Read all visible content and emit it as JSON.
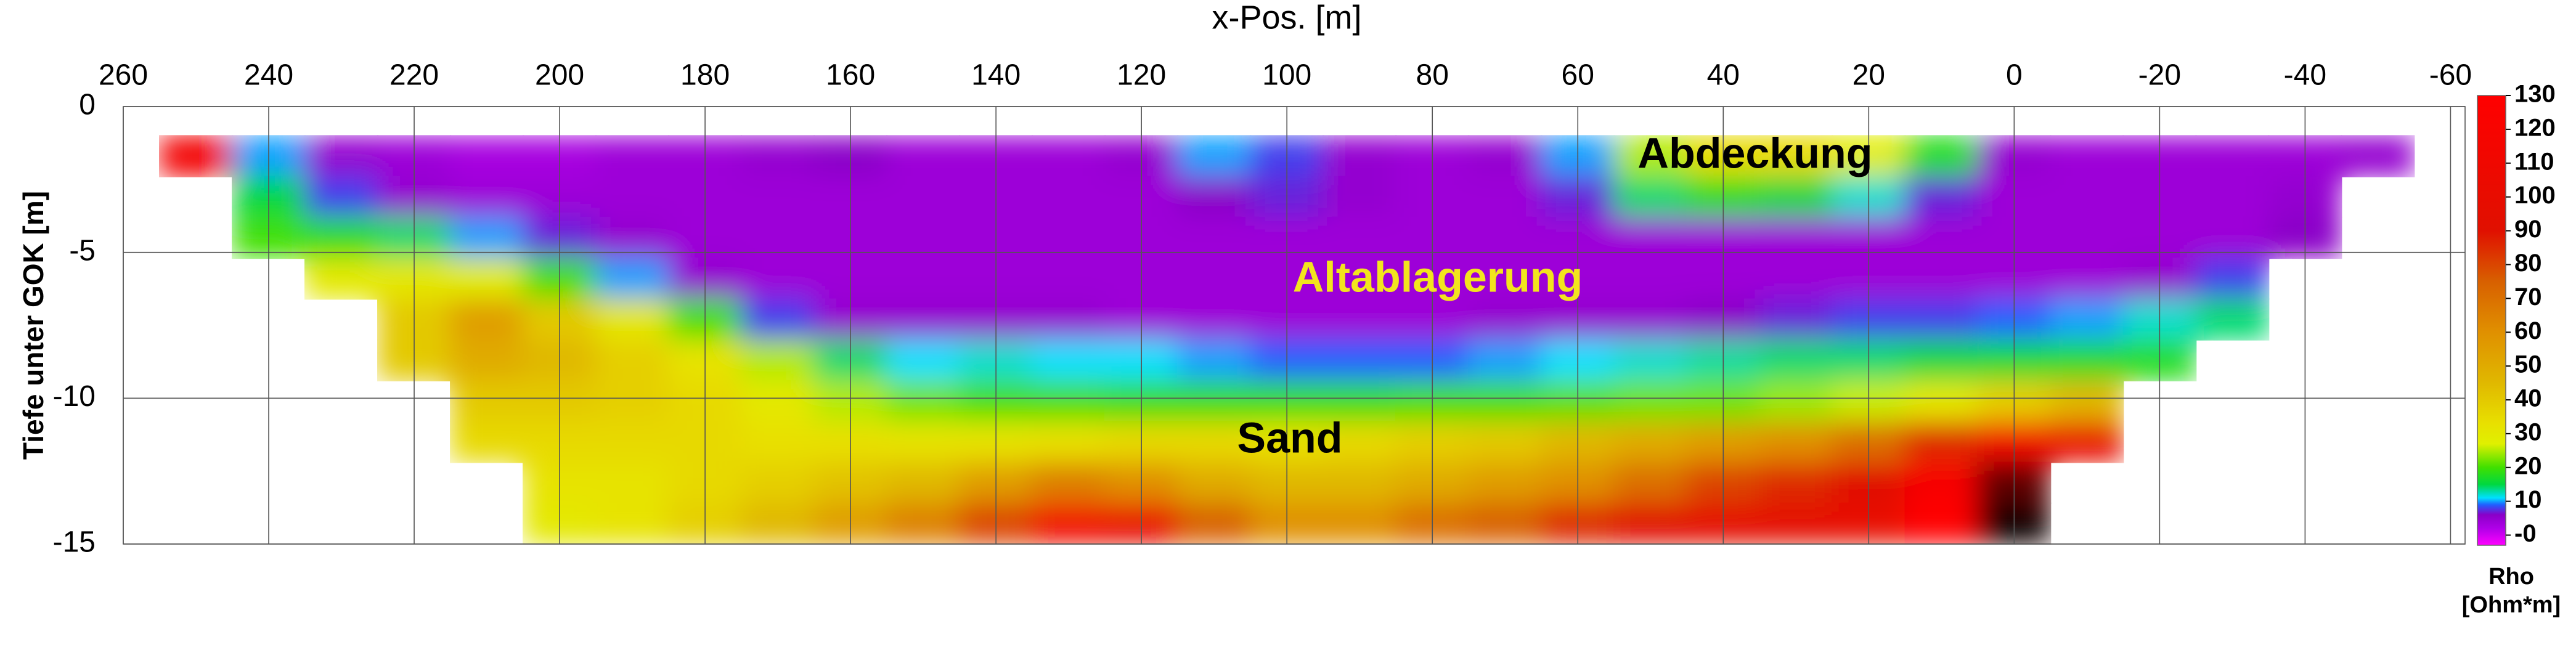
{
  "chart_data": {
    "type": "heatmap",
    "xlabel": "x-Pos. [m]",
    "ylabel": "Tiefe unter GOK [m]",
    "xlim": [
      260,
      -62
    ],
    "ylim": [
      -15,
      0
    ],
    "xticks": [
      260,
      240,
      220,
      200,
      180,
      160,
      140,
      120,
      100,
      80,
      60,
      40,
      20,
      0,
      -20,
      -40,
      -60
    ],
    "yticks": [
      0,
      -5,
      -10,
      -15
    ],
    "grid": true,
    "x": [
      250,
      240,
      230,
      220,
      210,
      200,
      190,
      180,
      170,
      160,
      150,
      140,
      130,
      120,
      110,
      100,
      90,
      80,
      70,
      60,
      50,
      40,
      30,
      20,
      10,
      0,
      -10,
      -20,
      -30,
      -40,
      -50
    ],
    "y": [
      -1.7,
      -3.1,
      -4.5,
      -5.9,
      -7.3,
      -8.7,
      -10.1,
      -11.5,
      -12.9,
      -14.3
    ],
    "values": [
      [
        115,
        10,
        5,
        4,
        3,
        3,
        4,
        4,
        5,
        6,
        4,
        4,
        4,
        5,
        10,
        8,
        5,
        4,
        5,
        10,
        25,
        35,
        35,
        28,
        18,
        5,
        4,
        4,
        4,
        4,
        5
      ],
      [
        null,
        15,
        8,
        5,
        4,
        4,
        4,
        4,
        4,
        4,
        4,
        4,
        4,
        4,
        6,
        7,
        5,
        4,
        4,
        7,
        14,
        18,
        15,
        12,
        7,
        4,
        4,
        4,
        4,
        5,
        null
      ],
      [
        null,
        20,
        18,
        14,
        10,
        7,
        5,
        4,
        4,
        4,
        4,
        4,
        4,
        4,
        4,
        4,
        4,
        4,
        4,
        4,
        4,
        4,
        4,
        4,
        4,
        4,
        4,
        4,
        4,
        6,
        null
      ],
      [
        null,
        null,
        30,
        30,
        28,
        20,
        10,
        5,
        4,
        4,
        4,
        4,
        4,
        4,
        4,
        4,
        4,
        4,
        4,
        4,
        4,
        4,
        4,
        4,
        4,
        4,
        4,
        5,
        8,
        null,
        null
      ],
      [
        null,
        null,
        null,
        40,
        55,
        40,
        30,
        20,
        8,
        5,
        5,
        5,
        5,
        4,
        4,
        4,
        4,
        4,
        5,
        5,
        5,
        6,
        7,
        8,
        8,
        9,
        10,
        12,
        14,
        null,
        null
      ],
      [
        null,
        null,
        null,
        40,
        50,
        45,
        38,
        32,
        25,
        14,
        11,
        12,
        11,
        11,
        10,
        9,
        9,
        9,
        10,
        11,
        12,
        13,
        14,
        14,
        15,
        16,
        17,
        18,
        null,
        null,
        null
      ],
      [
        null,
        null,
        null,
        null,
        40,
        40,
        38,
        35,
        30,
        25,
        22,
        20,
        20,
        19,
        19,
        19,
        19,
        20,
        20,
        21,
        22,
        22,
        24,
        26,
        30,
        38,
        45,
        null,
        null,
        null,
        null
      ],
      [
        null,
        null,
        null,
        null,
        35,
        35,
        35,
        35,
        33,
        33,
        32,
        32,
        33,
        35,
        35,
        33,
        35,
        38,
        40,
        45,
        50,
        55,
        60,
        70,
        85,
        110,
        100,
        null,
        null,
        null,
        null
      ],
      [
        null,
        null,
        null,
        null,
        null,
        32,
        32,
        35,
        38,
        42,
        45,
        55,
        65,
        60,
        50,
        45,
        45,
        50,
        55,
        60,
        70,
        80,
        85,
        90,
        120,
        160,
        null,
        null,
        null,
        null,
        null
      ],
      [
        null,
        null,
        null,
        null,
        null,
        30,
        32,
        38,
        45,
        55,
        65,
        80,
        110,
        100,
        75,
        60,
        60,
        70,
        75,
        85,
        90,
        95,
        95,
        100,
        130,
        180,
        null,
        null,
        null,
        null,
        null
      ]
    ],
    "colormap": [
      {
        "value": -3,
        "color": "#ff00ff"
      },
      {
        "value": 2,
        "color": "#b000e8"
      },
      {
        "value": 6,
        "color": "#8a00c8"
      },
      {
        "value": 9,
        "color": "#2060ff"
      },
      {
        "value": 11,
        "color": "#00e0ff"
      },
      {
        "value": 15,
        "color": "#00d840"
      },
      {
        "value": 20,
        "color": "#40e000"
      },
      {
        "value": 27,
        "color": "#e0f000"
      },
      {
        "value": 33,
        "color": "#e8e000"
      },
      {
        "value": 45,
        "color": "#e0b800"
      },
      {
        "value": 60,
        "color": "#e09000"
      },
      {
        "value": 75,
        "color": "#d86000"
      },
      {
        "value": 90,
        "color": "#e01000"
      },
      {
        "value": 130,
        "color": "#ff0000"
      },
      {
        "value": 160,
        "color": "#600000"
      },
      {
        "value": 180,
        "color": "#100000"
      }
    ],
    "colorbar": {
      "label": [
        "Rho",
        "[Ohm*m]"
      ],
      "zlim": [
        -3,
        130
      ],
      "ticks": [
        {
          "value": 0,
          "label": "-0"
        },
        10,
        20,
        30,
        40,
        50,
        60,
        70,
        80,
        90,
        100,
        110,
        120,
        130
      ]
    },
    "annotations": [
      {
        "text": "Abdeckung",
        "color": "#000000"
      },
      {
        "text": "Altablagerung",
        "color": "#f2e41e"
      },
      {
        "text": "Sand",
        "color": "#000000"
      }
    ]
  }
}
